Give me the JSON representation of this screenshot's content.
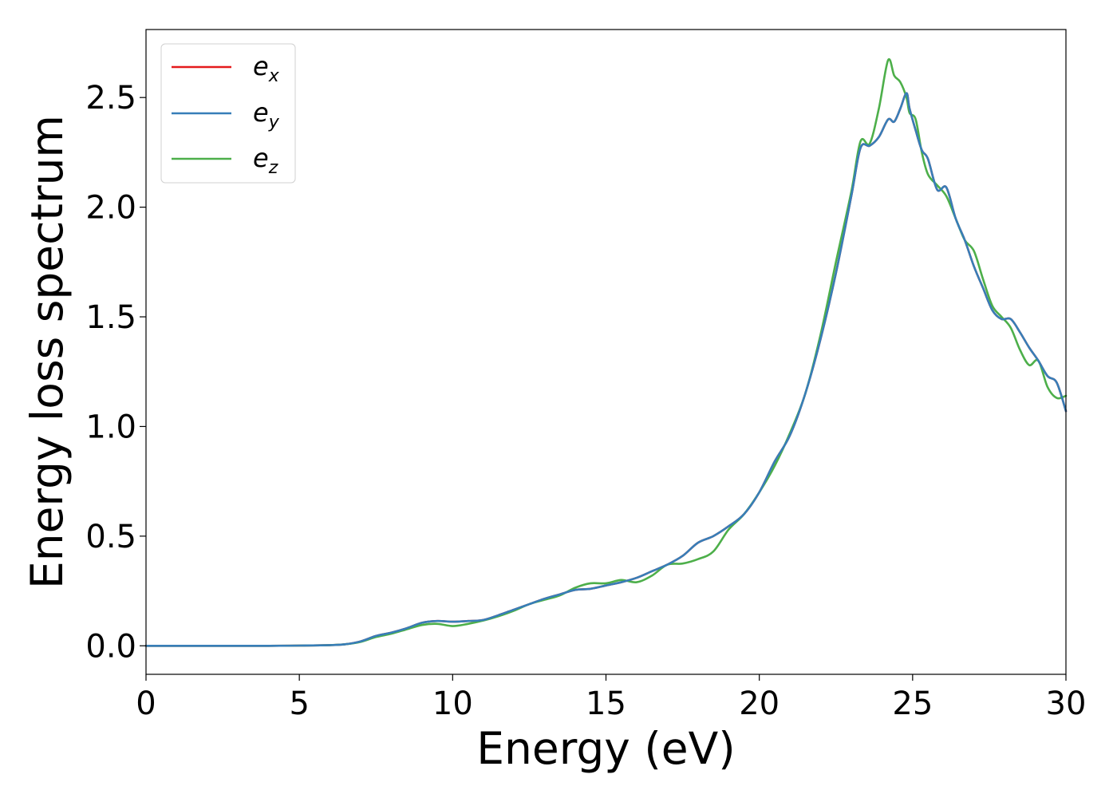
{
  "chart_data": {
    "type": "line",
    "title": "",
    "xlabel": "Energy (eV)",
    "ylabel": "Energy loss spectrum",
    "xlim": [
      0,
      30
    ],
    "ylim": [
      -0.13,
      2.81
    ],
    "x_ticks": [
      "0",
      "5",
      "10",
      "15",
      "20",
      "25",
      "30"
    ],
    "y_ticks": [
      "0.0",
      "0.5",
      "1.0",
      "1.5",
      "2.0",
      "2.5"
    ],
    "grid": false,
    "legend_position": "top-left",
    "x": [
      0,
      2,
      4,
      5,
      6,
      6.5,
      7,
      7.5,
      8,
      8.5,
      9,
      9.5,
      10,
      10.5,
      11,
      11.5,
      12,
      12.5,
      13,
      13.5,
      14,
      14.5,
      15,
      15.5,
      16,
      16.5,
      17,
      17.5,
      18,
      18.5,
      19,
      19.5,
      20,
      20.5,
      21,
      21.5,
      22,
      22.5,
      23,
      23.3,
      23.6,
      23.9,
      24.2,
      24.4,
      24.6,
      24.8,
      24.9,
      25.1,
      25.3,
      25.5,
      25.8,
      26.1,
      26.4,
      26.7,
      27,
      27.3,
      27.6,
      27.9,
      28.2,
      28.5,
      28.8,
      29.1,
      29.4,
      29.7,
      30
    ],
    "series": [
      {
        "name": "e",
        "name_subscript": "x",
        "color": "#e41a1c",
        "values": [
          0,
          0,
          0,
          0.001,
          0.003,
          0.007,
          0.02,
          0.045,
          0.06,
          0.08,
          0.105,
          0.113,
          0.11,
          0.113,
          0.118,
          0.14,
          0.165,
          0.19,
          0.215,
          0.235,
          0.255,
          0.26,
          0.275,
          0.29,
          0.31,
          0.34,
          0.37,
          0.41,
          0.47,
          0.5,
          0.545,
          0.6,
          0.7,
          0.84,
          0.96,
          1.15,
          1.4,
          1.7,
          2.05,
          2.27,
          2.28,
          2.32,
          2.4,
          2.39,
          2.45,
          2.52,
          2.45,
          2.35,
          2.26,
          2.22,
          2.08,
          2.09,
          1.95,
          1.85,
          1.73,
          1.63,
          1.53,
          1.49,
          1.49,
          1.43,
          1.36,
          1.3,
          1.23,
          1.2,
          1.07
        ]
      },
      {
        "name": "e",
        "name_subscript": "y",
        "color": "#377eb8",
        "values": [
          0,
          0,
          0,
          0.001,
          0.003,
          0.007,
          0.02,
          0.045,
          0.06,
          0.08,
          0.105,
          0.113,
          0.11,
          0.113,
          0.118,
          0.14,
          0.165,
          0.19,
          0.215,
          0.235,
          0.255,
          0.26,
          0.275,
          0.29,
          0.31,
          0.34,
          0.37,
          0.41,
          0.47,
          0.5,
          0.545,
          0.6,
          0.7,
          0.84,
          0.96,
          1.15,
          1.4,
          1.7,
          2.05,
          2.27,
          2.28,
          2.32,
          2.4,
          2.39,
          2.45,
          2.52,
          2.45,
          2.35,
          2.26,
          2.22,
          2.08,
          2.09,
          1.95,
          1.85,
          1.73,
          1.63,
          1.53,
          1.49,
          1.49,
          1.43,
          1.36,
          1.3,
          1.23,
          1.2,
          1.07
        ]
      },
      {
        "name": "e",
        "name_subscript": "z",
        "color": "#4daf4a",
        "values": [
          0,
          0,
          0,
          0.001,
          0.003,
          0.007,
          0.018,
          0.04,
          0.055,
          0.075,
          0.095,
          0.1,
          0.09,
          0.1,
          0.115,
          0.135,
          0.16,
          0.19,
          0.21,
          0.23,
          0.265,
          0.285,
          0.285,
          0.3,
          0.29,
          0.32,
          0.37,
          0.375,
          0.395,
          0.43,
          0.53,
          0.6,
          0.7,
          0.82,
          0.97,
          1.15,
          1.42,
          1.75,
          2.07,
          2.3,
          2.29,
          2.45,
          2.67,
          2.6,
          2.57,
          2.5,
          2.43,
          2.4,
          2.25,
          2.15,
          2.1,
          2.05,
          1.95,
          1.85,
          1.8,
          1.67,
          1.55,
          1.5,
          1.45,
          1.35,
          1.28,
          1.3,
          1.18,
          1.13,
          1.14
        ]
      }
    ]
  }
}
